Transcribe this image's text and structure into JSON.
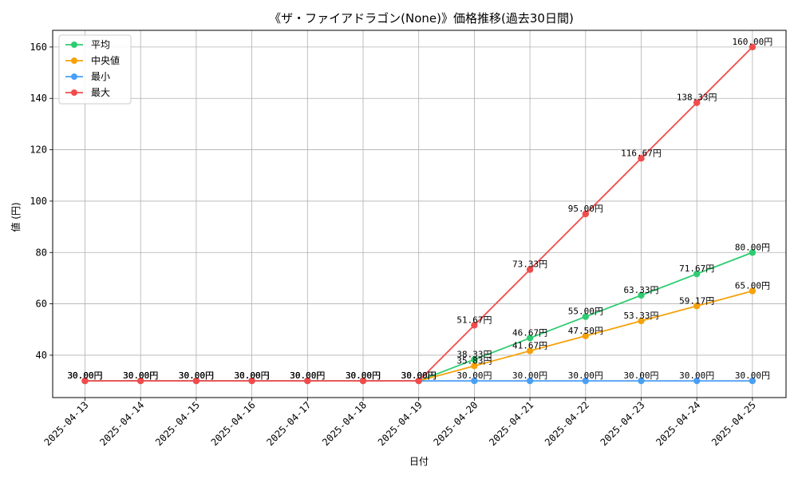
{
  "chart_data": {
    "type": "line",
    "title": "《ザ・ファイアドラゴン(None)》価格推移(過去30日間)",
    "xlabel": "日付",
    "ylabel": "値 (円)",
    "ylim": [
      23.5,
      166.5
    ],
    "yticks": [
      40,
      60,
      80,
      100,
      120,
      140,
      160
    ],
    "grid": true,
    "legend_position": "top-left",
    "value_suffix": "円",
    "categories": [
      "2025-04-13",
      "2025-04-14",
      "2025-04-15",
      "2025-04-16",
      "2025-04-17",
      "2025-04-18",
      "2025-04-19",
      "2025-04-20",
      "2025-04-21",
      "2025-04-22",
      "2025-04-23",
      "2025-04-24",
      "2025-04-25"
    ],
    "series": [
      {
        "name": "平均",
        "color": "#2ecc71",
        "values": [
          30,
          30,
          30,
          30,
          30,
          30,
          30,
          38.33,
          46.67,
          55.0,
          63.33,
          71.67,
          80.0
        ]
      },
      {
        "name": "中央値",
        "color": "#f5a20a",
        "values": [
          30,
          30,
          30,
          30,
          30,
          30,
          30,
          35.83,
          41.67,
          47.5,
          53.33,
          59.17,
          65.0
        ]
      },
      {
        "name": "最小",
        "color": "#4a9ff5",
        "values": [
          30,
          30,
          30,
          30,
          30,
          30,
          30,
          30,
          30,
          30,
          30,
          30,
          30
        ]
      },
      {
        "name": "最大",
        "color": "#f24b4b",
        "values": [
          30,
          30,
          30,
          30,
          30,
          30,
          30,
          51.67,
          73.33,
          95.0,
          116.67,
          138.33,
          160.0
        ]
      }
    ]
  }
}
